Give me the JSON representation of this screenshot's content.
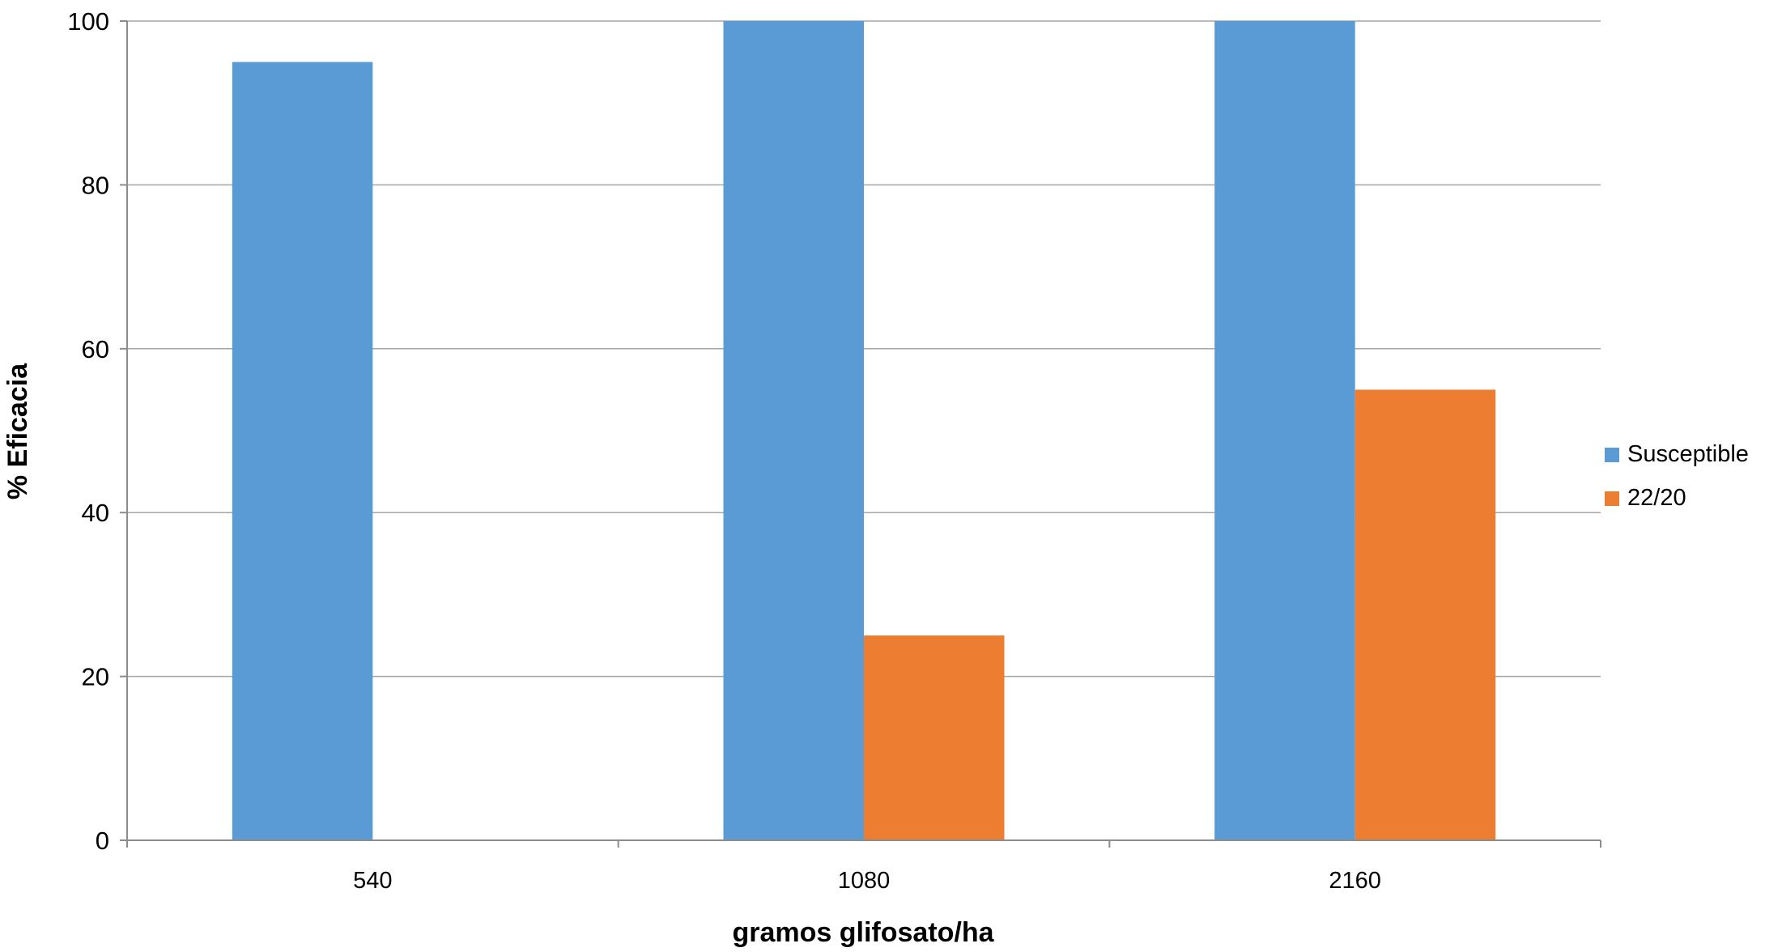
{
  "chart_data": {
    "type": "bar",
    "title": "",
    "xlabel": "gramos glifosato/ha",
    "ylabel": "% Eficacia",
    "categories": [
      "540",
      "1080",
      "2160"
    ],
    "series": [
      {
        "name": "Susceptible",
        "color": "#5B9BD5",
        "values": [
          95,
          100,
          100
        ]
      },
      {
        "name": "22/20",
        "color": "#ED7D31",
        "values": [
          0,
          25,
          55
        ]
      }
    ],
    "ylim": [
      0,
      100
    ],
    "yticks": [
      0,
      20,
      40,
      60,
      80,
      100
    ],
    "grid": true,
    "legend": "right"
  }
}
